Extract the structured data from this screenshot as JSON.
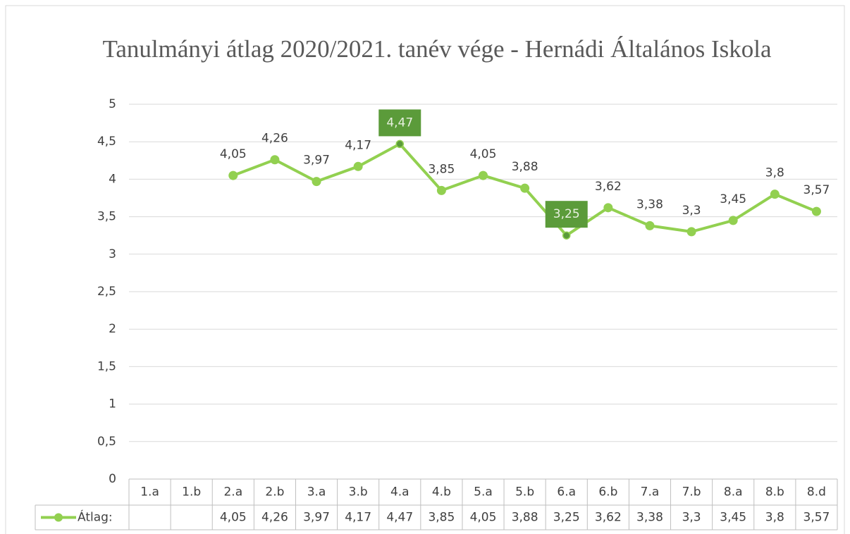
{
  "chart_data": {
    "type": "line",
    "title": "Tanulmányi átlag 2020/2021. tanév vége - Hernádi Általános Iskola",
    "categories": [
      "1.a",
      "1.b",
      "2.a",
      "2.b",
      "3.a",
      "3.b",
      "4.a",
      "4.b",
      "5.a",
      "5.b",
      "6.a",
      "6.b",
      "7.a",
      "7.b",
      "8.a",
      "8.b",
      "8.d"
    ],
    "series": [
      {
        "name": "Átlag:",
        "color": "#92d050",
        "values": [
          null,
          null,
          4.05,
          4.26,
          3.97,
          4.17,
          4.47,
          3.85,
          4.05,
          3.88,
          3.25,
          3.62,
          3.38,
          3.3,
          3.45,
          3.8,
          3.57
        ],
        "value_labels": [
          null,
          null,
          "4,05",
          "4,26",
          "3,97",
          "4,17",
          "4,47",
          "3,85",
          "4,05",
          "3,88",
          "3,25",
          "3,62",
          "3,38",
          "3,3",
          "3,45",
          "3,8",
          "3,57"
        ]
      }
    ],
    "highlighted_points": [
      6,
      10
    ],
    "highlight_color": "#5b9b3a",
    "ylim": [
      0,
      5
    ],
    "yticks": [
      0,
      {
        "value": 0.5,
        "label": "0,5"
      },
      1,
      {
        "value": 1.5,
        "label": "1,5"
      },
      2,
      {
        "value": 2.5,
        "label": "2,5"
      },
      3,
      {
        "value": 3.5,
        "label": "3,5"
      },
      4,
      {
        "value": 4.5,
        "label": "4,5"
      },
      5
    ],
    "grid": true,
    "data_table": true
  }
}
